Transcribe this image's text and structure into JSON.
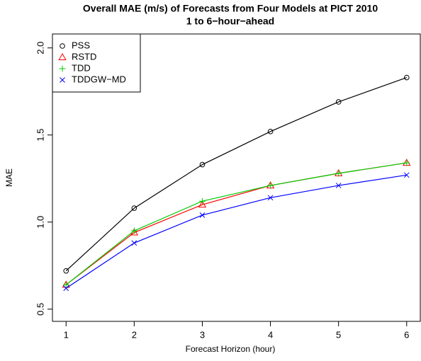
{
  "chart_data": {
    "type": "line",
    "title": "Overall MAE (m/s) of Forecasts from Four Models at PICT 2010",
    "subtitle": "1 to 6−hour−ahead",
    "x_label": "Forecast Horizon (hour)",
    "y_label": "MAE",
    "x": [
      1,
      2,
      3,
      4,
      5,
      6
    ],
    "xlim": [
      0.8,
      6.2
    ],
    "xticks": [
      1,
      2,
      3,
      4,
      5,
      6
    ],
    "ylim": [
      0.43,
      2.08
    ],
    "yticks": [
      0.5,
      {
        "value": 1,
        "label": "1.0"
      },
      1.5,
      {
        "value": 2,
        "label": "2.0"
      }
    ],
    "legend": "top-left",
    "series": [
      {
        "name": "PSS",
        "color": "#000000",
        "marker": "circle",
        "values": [
          0.72,
          1.08,
          1.33,
          1.52,
          1.69,
          1.83
        ]
      },
      {
        "name": "RSTD",
        "color": "#ff0000",
        "marker": "triangle",
        "values": [
          0.64,
          0.94,
          1.1,
          1.21,
          1.28,
          1.34
        ]
      },
      {
        "name": "TDD",
        "color": "#00cd00",
        "marker": "plus",
        "values": [
          0.64,
          0.95,
          1.12,
          1.21,
          1.28,
          1.34
        ]
      },
      {
        "name": "TDDGW−MD",
        "color": "#0000ff",
        "marker": "cross",
        "values": [
          0.62,
          0.88,
          1.04,
          1.14,
          1.21,
          1.27
        ]
      }
    ]
  }
}
